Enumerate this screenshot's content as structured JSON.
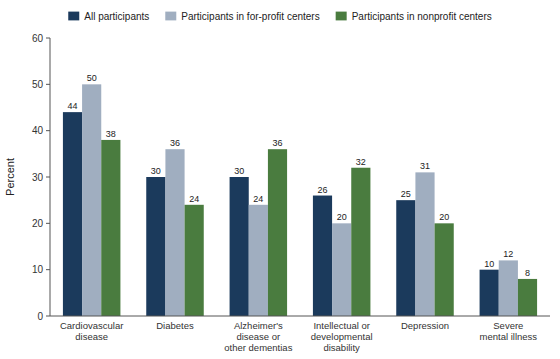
{
  "chart_data": {
    "type": "bar",
    "categories": [
      "Cardiovascular\ndisease",
      "Diabetes",
      "Alzheimer's\ndisease or\nother dementias",
      "Intellectual or\ndevelopmental\ndisability",
      "Depression",
      "Severe\nmental illness"
    ],
    "series": [
      {
        "name": "All participants",
        "color": "#1b3a5c",
        "values": [
          44,
          30,
          30,
          26,
          25,
          10
        ]
      },
      {
        "name": "Participants in for-profit centers",
        "color": "#a0aec0",
        "values": [
          50,
          36,
          24,
          20,
          31,
          12
        ]
      },
      {
        "name": "Participants in nonprofit centers",
        "color": "#4a7c3f",
        "values": [
          38,
          24,
          36,
          32,
          20,
          8
        ]
      }
    ],
    "ylabel": "Percent",
    "ylim": [
      0,
      60
    ],
    "yticks": [
      0,
      10,
      20,
      30,
      40,
      50,
      60
    ],
    "grid": false,
    "legend": "top",
    "data_labels": true
  }
}
